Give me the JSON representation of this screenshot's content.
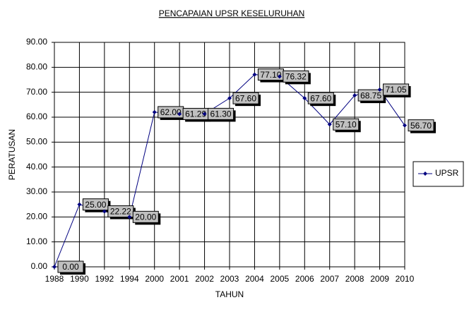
{
  "chart_data": {
    "type": "line",
    "title": "PENCAPAIAN UPSR KESELURUHAN",
    "x_label": "TAHUN",
    "y_label": "PERATUSAN",
    "categories": [
      "1988",
      "1990",
      "1992",
      "1994",
      "2000",
      "2001",
      "2002",
      "2003",
      "2004",
      "2005",
      "2006",
      "2007",
      "2008",
      "2009",
      "2010"
    ],
    "series": [
      {
        "name": "UPSR",
        "color": "#000080",
        "values": [
          0,
          25,
          22.22,
          20,
          62,
          61.29,
          61.3,
          67.6,
          77.1,
          76.32,
          67.6,
          57.1,
          68.75,
          71.05,
          56.7
        ],
        "value_labels": [
          "0.00",
          "25.00",
          "22.22",
          "20.00",
          "62.00",
          "61.29",
          "61.30",
          "67.60",
          "77.10",
          "76.32",
          "67.60",
          "57.10",
          "68.75",
          "71.05",
          "56.70"
        ]
      }
    ],
    "ylim": [
      0,
      90
    ],
    "yticks": [
      {
        "value": 0,
        "label": "0.00"
      },
      {
        "value": 10,
        "label": "10.00"
      },
      {
        "value": 20,
        "label": "20.00"
      },
      {
        "value": 30,
        "label": "30.00"
      },
      {
        "value": 40,
        "label": "40.00"
      },
      {
        "value": 50,
        "label": "50.00"
      },
      {
        "value": 60,
        "label": "60.00"
      },
      {
        "value": 70,
        "label": "70.00"
      },
      {
        "value": 80,
        "label": "80.00"
      },
      {
        "value": 90,
        "label": "90.00"
      }
    ],
    "grid": true,
    "legend": "right"
  }
}
